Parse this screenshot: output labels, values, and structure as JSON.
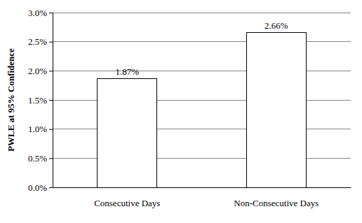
{
  "chart_data": {
    "type": "bar",
    "y_label": "PWLE at 95% Confidence",
    "categories": [
      "Consecutive Days",
      "Non-Consecutive Days"
    ],
    "values": [
      1.87,
      2.66
    ],
    "value_labels": [
      "1.87%",
      "2.66%"
    ],
    "color": "#ffffff",
    "ylim": [
      0,
      3
    ],
    "yticks": [
      {
        "value": 0,
        "label": "0.0%"
      },
      {
        "value": 0.5,
        "label": "0.5%"
      },
      {
        "value": 1,
        "label": "1.0%"
      },
      {
        "value": 1.5,
        "label": "1.5%"
      },
      {
        "value": 2,
        "label": "2.0%"
      },
      {
        "value": 2.5,
        "label": "2.5%"
      },
      {
        "value": 3,
        "label": "3.0%"
      }
    ],
    "grid": true,
    "data_labels": true
  }
}
